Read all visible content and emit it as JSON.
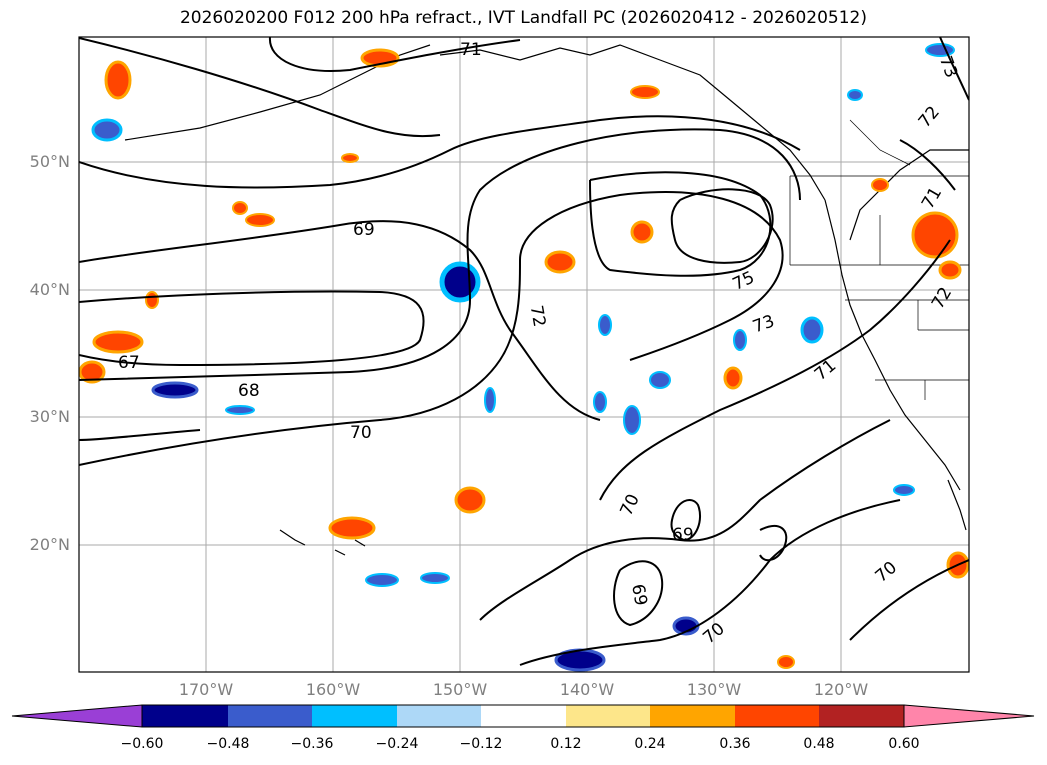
{
  "title": "2026020200 F012 200 hPa refract., IVT Landfall PC (2026020412 - 2026020512)",
  "map": {
    "lon_range": [
      -180,
      -110
    ],
    "lat_range": [
      10,
      60
    ],
    "lat_labels": [
      "50°N",
      "40°N",
      "30°N",
      "20°N"
    ],
    "lon_labels": [
      "170°W",
      "160°W",
      "150°W",
      "140°W",
      "130°W",
      "120°W"
    ],
    "contour_labels": [
      "71",
      "73",
      "72",
      "69",
      "67",
      "68",
      "70",
      "72",
      "75",
      "73",
      "71",
      "70",
      "69",
      "69",
      "70",
      "70",
      "71",
      "72"
    ]
  },
  "colorbar": {
    "ticks": [
      "−0.60",
      "−0.48",
      "−0.36",
      "−0.24",
      "−0.12",
      "0.12",
      "0.24",
      "0.36",
      "0.48",
      "0.60"
    ],
    "colors": [
      "#9a3fd6",
      "#00008b",
      "#3a5ccc",
      "#00bfff",
      "#add8f7",
      "#ffffff",
      "#fde68a",
      "#ffa500",
      "#ff4500",
      "#b22222",
      "#ff85aa"
    ]
  }
}
